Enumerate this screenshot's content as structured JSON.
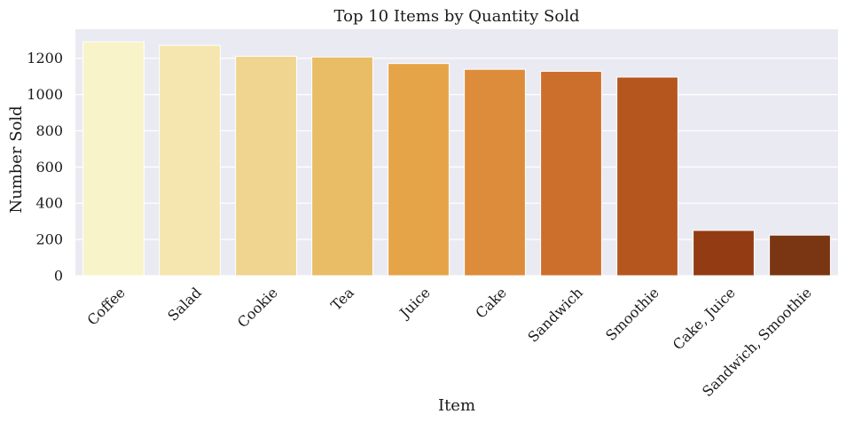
{
  "chart_data": {
    "type": "bar",
    "title": "Top 10 Items by Quantity Sold",
    "xlabel": "Item",
    "ylabel": "Number Sold",
    "categories": [
      "Coffee",
      "Salad",
      "Cookie",
      "Tea",
      "Juice",
      "Cake",
      "Sandwich",
      "Smoothie",
      "Cake, Juice",
      "Sandwich, Smoothie"
    ],
    "values": [
      1291,
      1271,
      1211,
      1207,
      1171,
      1139,
      1128,
      1096,
      250,
      224
    ],
    "ylim": [
      0,
      1360
    ],
    "yticks": [
      0,
      200,
      400,
      600,
      800,
      1000,
      1200
    ],
    "grid": true,
    "plot_background": "#eaeaf2",
    "grid_color": "#ffffff",
    "colors": [
      "#f8f3c9",
      "#f4e6ae",
      "#efd58f",
      "#e8bd66",
      "#e6a448",
      "#dd8c3b",
      "#cd6f2c",
      "#b5561e",
      "#933c13",
      "#7a3513"
    ]
  }
}
